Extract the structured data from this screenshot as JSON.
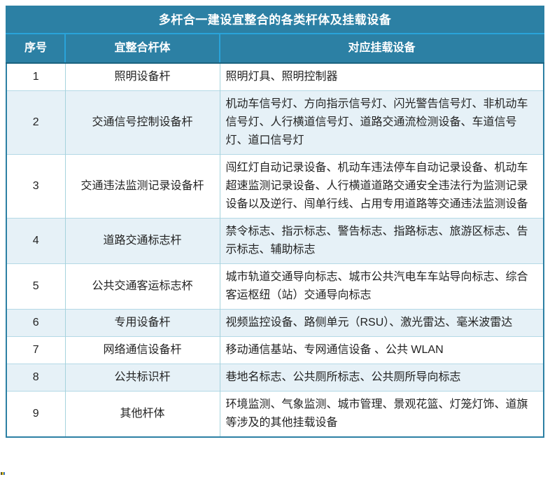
{
  "table": {
    "title": "多杆合一建设宜整合的各类杆体及挂载设备",
    "columns": [
      "序号",
      "宜整合杆体",
      "对应挂载设备"
    ],
    "rows": [
      {
        "no": "1",
        "pole": "照明设备杆",
        "devices": "照明灯具、照明控制器"
      },
      {
        "no": "2",
        "pole": "交通信号控制设备杆",
        "devices": "机动车信号灯、方向指示信号灯、闪光警告信号灯、非机动车信号灯、人行横道信号灯、道路交通流检测设备、车道信号灯、道口信号灯"
      },
      {
        "no": "3",
        "pole": "交通违法监测记录设备杆",
        "devices": "闯红灯自动记录设备、机动车违法停车自动记录设备、机动车超速监测记录设备、人行横道道路交通安全违法行为监测记录设备以及逆行、闯单行线、占用专用道路等交通违法监测设备"
      },
      {
        "no": "4",
        "pole": "道路交通标志杆",
        "devices": "禁令标志、指示标志、警告标志、指路标志、旅游区标志、告示标志、辅助标志"
      },
      {
        "no": "5",
        "pole": "公共交通客运标志杯",
        "devices": "城市轨道交通导向标志、城市公共汽电车车站导向标志、综合客运枢纽（站）交通导向标志"
      },
      {
        "no": "6",
        "pole": "专用设备杆",
        "devices": "视频监控设备、路侧单元（RSU）、激光雷达、毫米波雷达"
      },
      {
        "no": "7",
        "pole": "网络通信设备杆",
        "devices": "移动通信基站、专网通信设备 、公共 WLAN"
      },
      {
        "no": "8",
        "pole": "公共标识杆",
        "devices": "巷地名标志、公共厕所标志、公共厕所导向标志"
      },
      {
        "no": "9",
        "pole": "其他杆体",
        "devices": "环境监测、气象监测、城市管理、景观花篮、灯笼灯饰、道旗等涉及的其他挂载设备"
      }
    ]
  },
  "colors": {
    "header_bg": "#2c80a4",
    "header_divider": "#29a3da",
    "header_bottom_border": "#1b627f",
    "row_alt_bg": "#e6f1f7",
    "body_grid_vertical": "#a6d3dd",
    "body_grid_horizontal": "#b4d9e6",
    "outer_border": "#2c80a4",
    "text": "#222222",
    "header_text": "#ffffff"
  }
}
